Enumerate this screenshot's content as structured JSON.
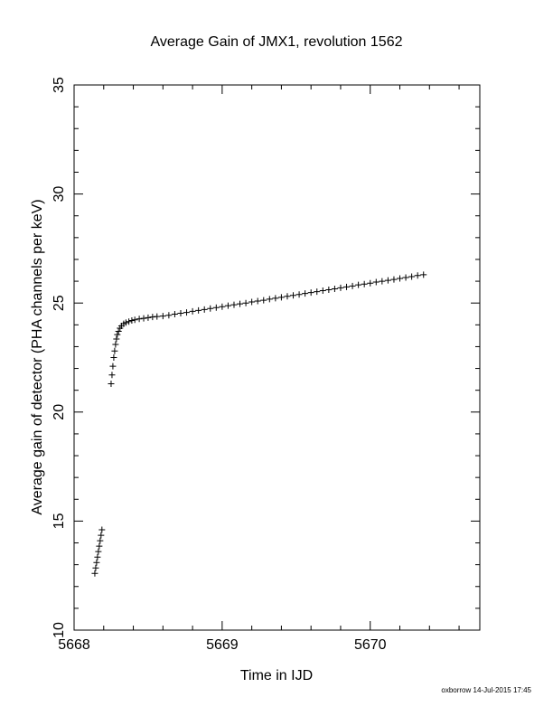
{
  "chart_data": {
    "type": "scatter",
    "title": "Average Gain of JMX1, revolution 1562",
    "x_label": "Time in IJD",
    "y_label": "Average gain of detector (PHA channels per keV)",
    "marker": "plus",
    "color": "#000000",
    "x": [
      5668.14,
      5668.146,
      5668.152,
      5668.158,
      5668.164,
      5668.17,
      5668.176,
      5668.182,
      5668.188,
      5668.25,
      5668.256,
      5668.262,
      5668.268,
      5668.274,
      5668.28,
      5668.286,
      5668.292,
      5668.3,
      5668.31,
      5668.32,
      5668.335,
      5668.35,
      5668.37,
      5668.39,
      5668.41,
      5668.44,
      5668.47,
      5668.5,
      5668.53,
      5668.56,
      5668.6,
      5668.64,
      5668.68,
      5668.72,
      5668.76,
      5668.8,
      5668.84,
      5668.88,
      5668.92,
      5668.96,
      5669.0,
      5669.04,
      5669.08,
      5669.12,
      5669.16,
      5669.2,
      5669.24,
      5669.28,
      5669.32,
      5669.36,
      5669.4,
      5669.44,
      5669.48,
      5669.52,
      5669.56,
      5669.6,
      5669.64,
      5669.68,
      5669.72,
      5669.76,
      5669.8,
      5669.84,
      5669.88,
      5669.92,
      5669.96,
      5670.0,
      5670.04,
      5670.08,
      5670.12,
      5670.16,
      5670.2,
      5670.24,
      5670.28,
      5670.32,
      5670.36
    ],
    "values": [
      12.6,
      12.85,
      13.1,
      13.35,
      13.6,
      13.85,
      14.1,
      14.35,
      14.6,
      21.3,
      21.7,
      22.1,
      22.5,
      22.8,
      23.1,
      23.35,
      23.55,
      23.7,
      23.85,
      23.95,
      24.05,
      24.1,
      24.15,
      24.2,
      24.23,
      24.27,
      24.3,
      24.33,
      24.36,
      24.38,
      24.4,
      24.44,
      24.49,
      24.53,
      24.57,
      24.62,
      24.66,
      24.7,
      24.75,
      24.79,
      24.83,
      24.88,
      24.92,
      24.96,
      25.0,
      25.05,
      25.09,
      25.13,
      25.18,
      25.22,
      25.26,
      25.31,
      25.35,
      25.39,
      25.44,
      25.48,
      25.52,
      25.57,
      25.61,
      25.65,
      25.7,
      25.74,
      25.78,
      25.83,
      25.87,
      25.91,
      25.96,
      26.0,
      26.04,
      26.08,
      26.13,
      26.17,
      26.21,
      26.26,
      26.3
    ],
    "xlim": [
      5668,
      5670.74
    ],
    "ylim": [
      10,
      35
    ],
    "xticks": [
      5668,
      5669,
      5670
    ],
    "yticks": [
      10,
      15,
      20,
      25,
      30,
      35
    ],
    "xminorticks": [
      5668.2,
      5668.4,
      5668.6,
      5668.8,
      5669.2,
      5669.4,
      5669.6,
      5669.8,
      5670.2,
      5670.4,
      5670.6
    ],
    "yminorticks": [
      11,
      12,
      13,
      14,
      16,
      17,
      18,
      19,
      21,
      22,
      23,
      24,
      26,
      27,
      28,
      29,
      31,
      32,
      33,
      34
    ]
  },
  "footer": "oxborrow 14-Jul-2015 17:45"
}
